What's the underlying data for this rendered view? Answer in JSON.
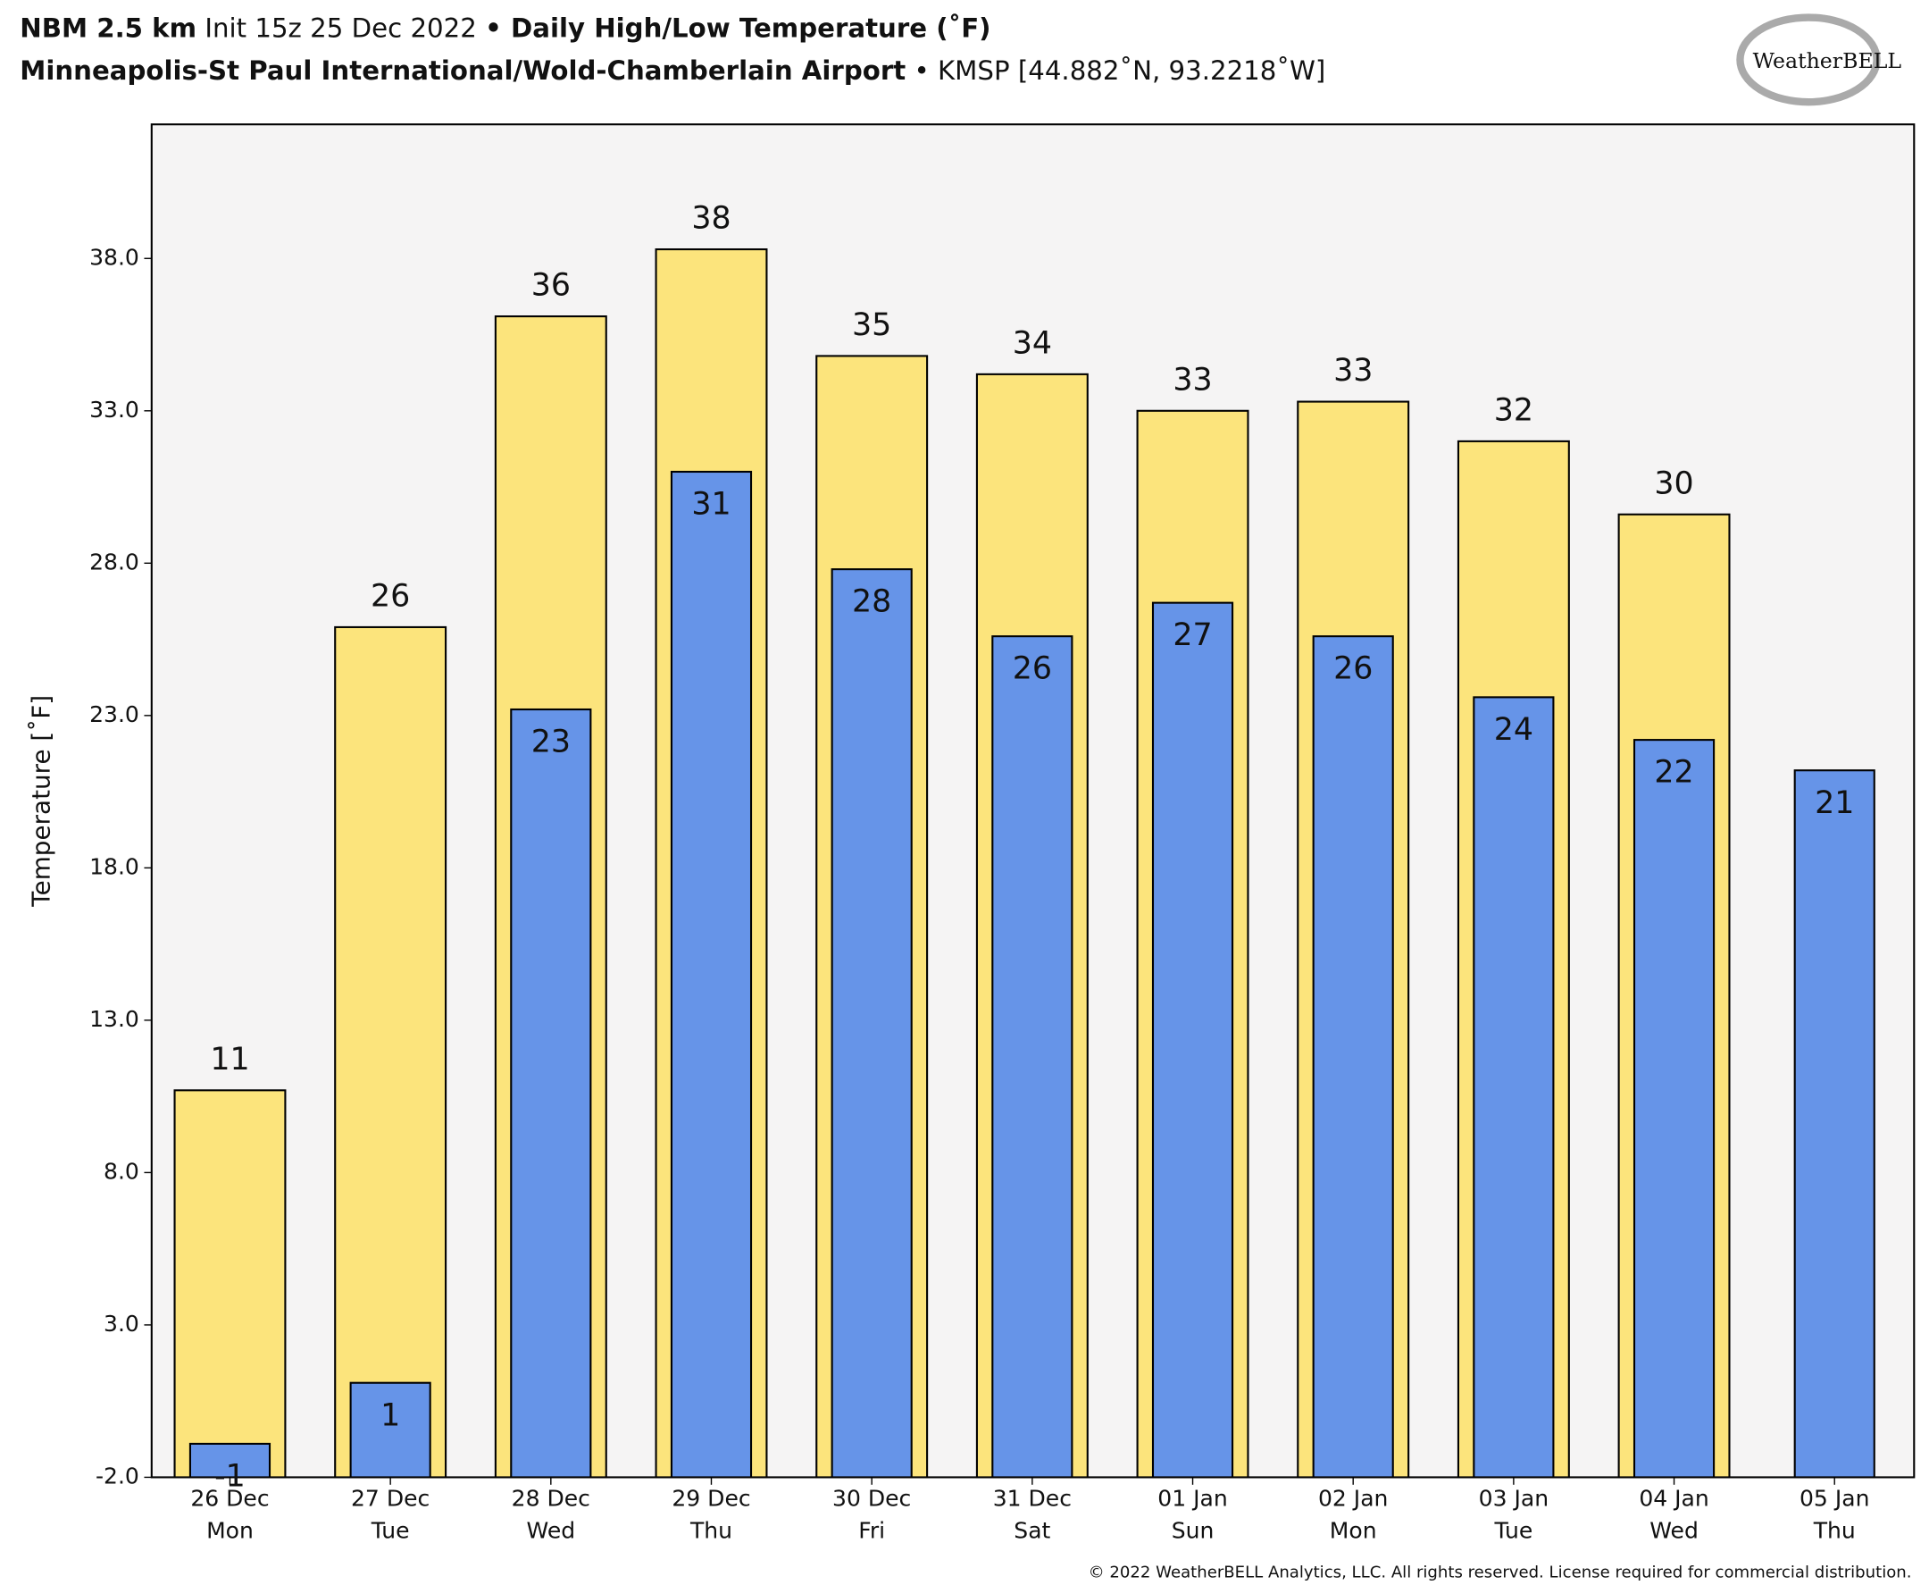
{
  "chart_data": {
    "type": "bar",
    "title_parts": [
      "NBM 2.5 km",
      "Init 15z 25 Dec 2022",
      "• Daily High/Low Temperature (˚F)"
    ],
    "subtitle_parts": [
      "Minneapolis-St Paul International/Wold-Chamberlain Airport",
      "• KMSP [44.882˚N, 93.2218˚W]"
    ],
    "ylabel": "Temperature [˚F]",
    "logo": "WeatherBELL",
    "copyright": "© 2022 WeatherBELL Analytics, LLC. All rights reserved. License required for commercial distribution.",
    "categories": [
      "26 Dec",
      "27 Dec",
      "28 Dec",
      "29 Dec",
      "30 Dec",
      "31 Dec",
      "01 Jan",
      "02 Jan",
      "03 Jan",
      "04 Jan",
      "05 Jan"
    ],
    "category_days": [
      "Mon",
      "Tue",
      "Wed",
      "Thu",
      "Fri",
      "Sat",
      "Sun",
      "Mon",
      "Tue",
      "Wed",
      "Thu"
    ],
    "series": [
      {
        "color": "#fce47c",
        "values": [
          10.7,
          25.9,
          36.1,
          38.3,
          34.8,
          34.2,
          33.0,
          33.3,
          32.0,
          29.6,
          null
        ],
        "value_labels": [
          "11",
          "26",
          "36",
          "38",
          "35",
          "34",
          "33",
          "33",
          "32",
          "30",
          null
        ]
      },
      {
        "color": "#6694e8",
        "values": [
          -0.9,
          1.1,
          23.2,
          31.0,
          27.8,
          25.6,
          26.7,
          25.6,
          23.6,
          22.2,
          21.2
        ],
        "value_labels": [
          "-1",
          "1",
          "23",
          "31",
          "28",
          "26",
          "27",
          "26",
          "24",
          "22",
          "21"
        ]
      }
    ],
    "ylim": [
      -2,
      42.4
    ],
    "yticks": [
      {
        "value": -2,
        "label": "-2.0"
      },
      {
        "value": 3,
        "label": "3.0"
      },
      {
        "value": 8,
        "label": "8.0"
      },
      {
        "value": 13,
        "label": "13.0"
      },
      {
        "value": 18,
        "label": "18.0"
      },
      {
        "value": 23,
        "label": "23.0"
      },
      {
        "value": 28,
        "label": "28.0"
      },
      {
        "value": 33,
        "label": "33.0"
      },
      {
        "value": 38,
        "label": "38.0"
      }
    ],
    "grid": false
  }
}
